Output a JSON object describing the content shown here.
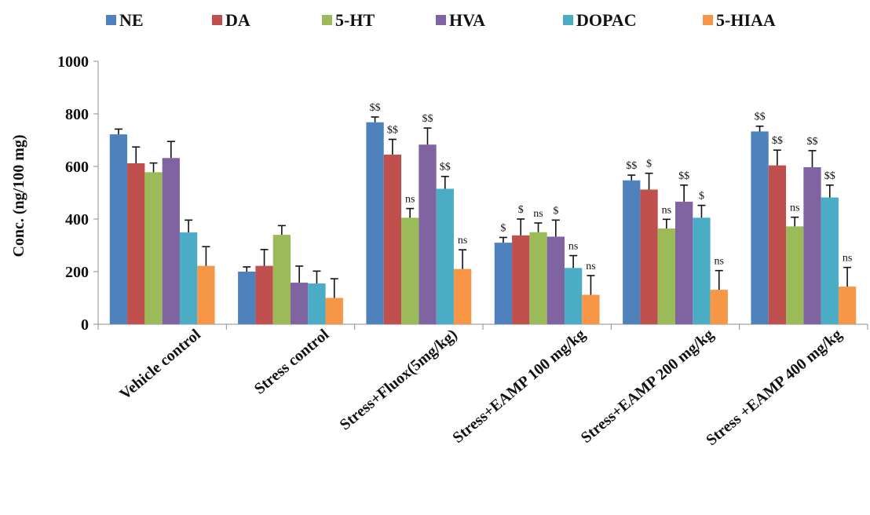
{
  "chart_data": {
    "type": "bar",
    "title": "",
    "xlabel": "",
    "ylabel": "Conc. (ng/100 mg)",
    "ylim": [
      0,
      1000
    ],
    "yticks": [
      0,
      200,
      400,
      600,
      800,
      1000
    ],
    "grid": false,
    "legend_position": "top",
    "categories": [
      "Vehicle control",
      "Stress control",
      "Stress+Fluox(5mg/kg)",
      "Stress+EAMP 100 mg/kg",
      "Stress+EAMP 200 mg/kg",
      "Stress +EAMP 400 mg/kg"
    ],
    "series": [
      {
        "name": "NE",
        "color": "#4f81bd",
        "values": [
          722,
          200,
          768,
          310,
          547,
          733
        ],
        "errors": [
          20,
          18,
          20,
          20,
          20,
          20
        ],
        "annotations": [
          "",
          "",
          "$$",
          "$",
          "$$",
          "$$"
        ]
      },
      {
        "name": "DA",
        "color": "#c0504d",
        "values": [
          612,
          222,
          645,
          338,
          512,
          604
        ],
        "errors": [
          62,
          62,
          58,
          62,
          62,
          58
        ],
        "annotations": [
          "",
          "",
          "$$",
          "$",
          "$",
          "$$"
        ]
      },
      {
        "name": "5-HT",
        "color": "#9bbb59",
        "values": [
          578,
          340,
          405,
          350,
          364,
          372
        ],
        "errors": [
          35,
          35,
          35,
          35,
          35,
          35
        ],
        "annotations": [
          "",
          "",
          "ns",
          "ns",
          "ns",
          "ns"
        ]
      },
      {
        "name": "HVA",
        "color": "#8064a2",
        "values": [
          632,
          158,
          683,
          333,
          466,
          597
        ],
        "errors": [
          63,
          63,
          63,
          63,
          63,
          63
        ],
        "annotations": [
          "",
          "",
          "$$",
          "$",
          "$$",
          "$$"
        ]
      },
      {
        "name": "DOPAC",
        "color": "#4bacc6",
        "values": [
          349,
          155,
          515,
          214,
          405,
          482
        ],
        "errors": [
          47,
          47,
          47,
          47,
          47,
          47
        ],
        "annotations": [
          "",
          "",
          "$$",
          "ns",
          "$",
          "$$"
        ]
      },
      {
        "name": "5-HIAA",
        "color": "#f79646",
        "values": [
          222,
          100,
          210,
          112,
          131,
          143
        ],
        "errors": [
          73,
          73,
          73,
          73,
          73,
          73
        ],
        "annotations": [
          "",
          "",
          "ns",
          "ns",
          "ns",
          "ns"
        ]
      }
    ]
  }
}
